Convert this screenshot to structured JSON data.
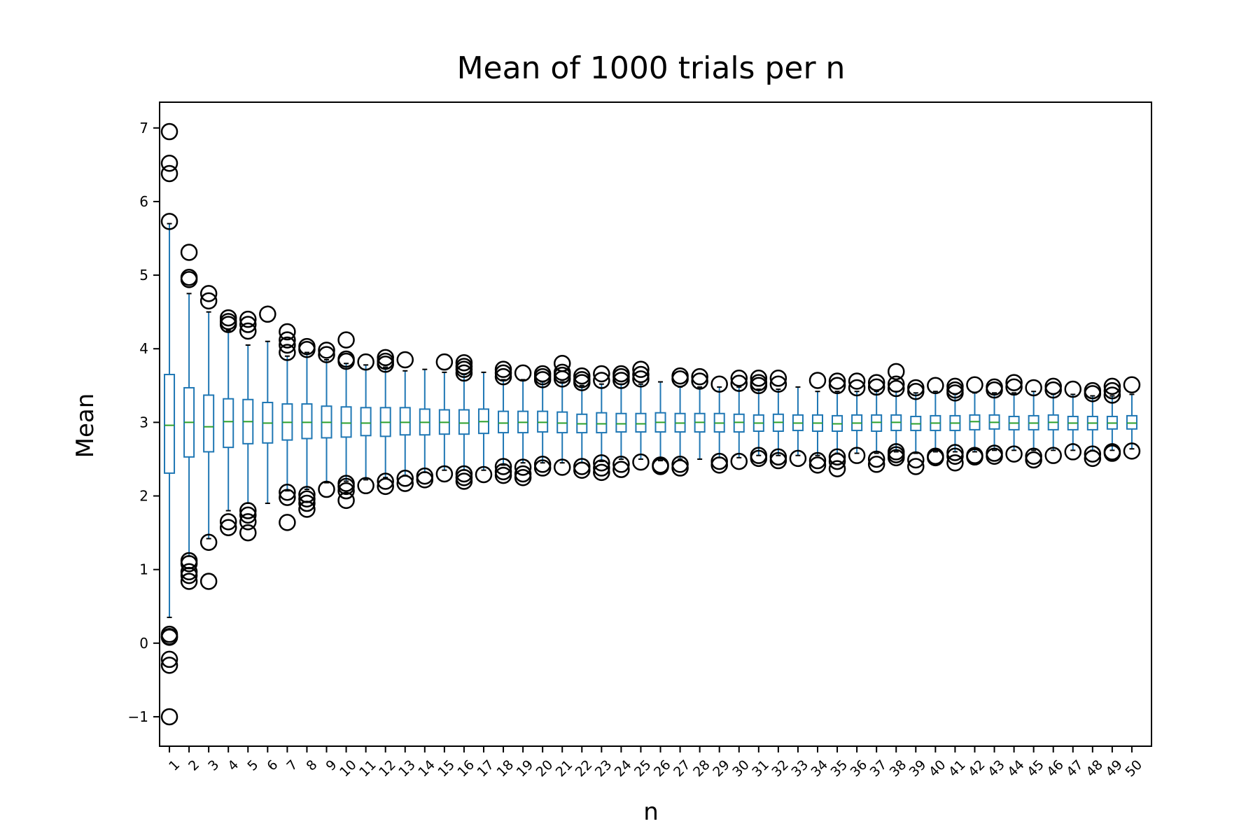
{
  "chart_data": {
    "type": "box",
    "title": "Mean of 1000 trials per n",
    "xlabel": "n",
    "ylabel": "Mean",
    "ylim": [
      -1.4,
      7.35
    ],
    "yticks": [
      -1,
      0,
      1,
      2,
      3,
      4,
      5,
      6,
      7
    ],
    "ytick_labels": [
      "−1",
      "0",
      "1",
      "2",
      "3",
      "4",
      "5",
      "6",
      "7"
    ],
    "grid": false,
    "categories": [
      "1",
      "2",
      "3",
      "4",
      "5",
      "6",
      "7",
      "8",
      "9",
      "10",
      "11",
      "12",
      "13",
      "14",
      "15",
      "16",
      "17",
      "18",
      "19",
      "20",
      "21",
      "22",
      "23",
      "24",
      "25",
      "26",
      "27",
      "28",
      "29",
      "30",
      "31",
      "32",
      "33",
      "34",
      "35",
      "36",
      "37",
      "38",
      "39",
      "40",
      "41",
      "42",
      "43",
      "44",
      "45",
      "46",
      "47",
      "48",
      "49",
      "50"
    ],
    "colors": {
      "box": "#1f77b4",
      "median": "#2ca02c",
      "whisker_cap": "#000000",
      "flier": "#000000"
    },
    "boxes": [
      {
        "n": 1,
        "median": 2.96,
        "q1": 2.31,
        "q3": 3.65,
        "whislo": 0.35,
        "whishi": 5.7,
        "fliers": [
          6.95,
          6.52,
          6.38,
          5.73,
          0.12,
          0.09,
          0.08,
          -0.22,
          -0.3,
          -1.0
        ]
      },
      {
        "n": 2,
        "median": 3.0,
        "q1": 2.53,
        "q3": 3.47,
        "whislo": 1.18,
        "whishi": 4.75,
        "fliers": [
          5.31,
          4.97,
          4.94,
          1.12,
          1.08,
          0.97,
          0.92,
          0.84
        ]
      },
      {
        "n": 3,
        "median": 2.94,
        "q1": 2.6,
        "q3": 3.37,
        "whislo": 1.42,
        "whishi": 4.5,
        "fliers": [
          4.75,
          4.65,
          1.37,
          0.84
        ]
      },
      {
        "n": 4,
        "median": 3.01,
        "q1": 2.66,
        "q3": 3.32,
        "whislo": 1.8,
        "whishi": 4.25,
        "fliers": [
          4.42,
          4.37,
          4.33,
          1.65,
          1.57
        ]
      },
      {
        "n": 5,
        "median": 3.01,
        "q1": 2.71,
        "q3": 3.31,
        "whislo": 1.9,
        "whishi": 4.05,
        "fliers": [
          4.4,
          4.33,
          4.24,
          1.8,
          1.74,
          1.65,
          1.5
        ]
      },
      {
        "n": 6,
        "median": 2.99,
        "q1": 2.72,
        "q3": 3.27,
        "whislo": 1.9,
        "whishi": 4.1,
        "fliers": [
          4.47
        ]
      },
      {
        "n": 7,
        "median": 3.0,
        "q1": 2.76,
        "q3": 3.25,
        "whislo": 2.07,
        "whishi": 3.9,
        "fliers": [
          4.23,
          4.12,
          4.05,
          3.95,
          2.05,
          1.98,
          1.64
        ]
      },
      {
        "n": 8,
        "median": 3.0,
        "q1": 2.78,
        "q3": 3.25,
        "whislo": 2.09,
        "whishi": 3.95,
        "fliers": [
          4.03,
          3.99,
          2.02,
          1.96,
          1.9,
          1.82
        ]
      },
      {
        "n": 9,
        "median": 3.0,
        "q1": 2.79,
        "q3": 3.22,
        "whislo": 2.18,
        "whishi": 3.85,
        "fliers": [
          3.98,
          3.92,
          2.09
        ]
      },
      {
        "n": 10,
        "median": 2.99,
        "q1": 2.8,
        "q3": 3.21,
        "whislo": 2.2,
        "whishi": 3.8,
        "fliers": [
          4.12,
          3.86,
          3.83,
          2.17,
          2.13,
          2.07,
          1.94
        ]
      },
      {
        "n": 11,
        "median": 2.99,
        "q1": 2.82,
        "q3": 3.2,
        "whislo": 2.22,
        "whishi": 3.78,
        "fliers": [
          3.82,
          2.14
        ]
      },
      {
        "n": 12,
        "median": 3.0,
        "q1": 2.81,
        "q3": 3.2,
        "whislo": 2.25,
        "whishi": 3.75,
        "fliers": [
          3.88,
          3.83,
          3.79,
          2.2,
          2.13
        ]
      },
      {
        "n": 13,
        "median": 3.0,
        "q1": 2.83,
        "q3": 3.2,
        "whislo": 2.28,
        "whishi": 3.7,
        "fliers": [
          3.85,
          2.24,
          2.17
        ]
      },
      {
        "n": 14,
        "median": 3.0,
        "q1": 2.83,
        "q3": 3.18,
        "whislo": 2.32,
        "whishi": 3.72,
        "fliers": [
          2.27,
          2.22
        ]
      },
      {
        "n": 15,
        "median": 3.0,
        "q1": 2.84,
        "q3": 3.17,
        "whislo": 2.35,
        "whishi": 3.68,
        "fliers": [
          3.82,
          2.3
        ]
      },
      {
        "n": 16,
        "median": 2.99,
        "q1": 2.84,
        "q3": 3.17,
        "whislo": 2.35,
        "whishi": 3.65,
        "fliers": [
          3.81,
          3.76,
          3.72,
          3.67,
          2.3,
          2.25,
          2.2
        ]
      },
      {
        "n": 17,
        "median": 3.01,
        "q1": 2.85,
        "q3": 3.18,
        "whislo": 2.35,
        "whishi": 3.68,
        "fliers": [
          2.29
        ]
      },
      {
        "n": 18,
        "median": 2.99,
        "q1": 2.86,
        "q3": 3.15,
        "whislo": 2.42,
        "whishi": 3.58,
        "fliers": [
          3.72,
          3.67,
          3.62,
          2.4,
          2.33,
          2.28
        ]
      },
      {
        "n": 19,
        "median": 3.0,
        "q1": 2.86,
        "q3": 3.15,
        "whislo": 2.45,
        "whishi": 3.58,
        "fliers": [
          3.67,
          2.39,
          2.3,
          2.25
        ]
      },
      {
        "n": 20,
        "median": 3.0,
        "q1": 2.87,
        "q3": 3.15,
        "whislo": 2.45,
        "whishi": 3.55,
        "fliers": [
          3.66,
          3.62,
          3.58,
          2.43,
          2.38
        ]
      },
      {
        "n": 21,
        "median": 2.99,
        "q1": 2.86,
        "q3": 3.14,
        "whislo": 2.45,
        "whishi": 3.55,
        "fliers": [
          3.8,
          3.68,
          3.64,
          3.59,
          2.39
        ]
      },
      {
        "n": 22,
        "median": 2.98,
        "q1": 2.86,
        "q3": 3.11,
        "whislo": 2.45,
        "whishi": 3.5,
        "fliers": [
          3.63,
          3.58,
          3.54,
          2.4,
          2.35
        ]
      },
      {
        "n": 23,
        "median": 2.98,
        "q1": 2.86,
        "q3": 3.13,
        "whislo": 2.47,
        "whishi": 3.52,
        "fliers": [
          3.66,
          3.57,
          2.45,
          2.38,
          2.32
        ]
      },
      {
        "n": 24,
        "median": 2.98,
        "q1": 2.87,
        "q3": 3.12,
        "whislo": 2.5,
        "whishi": 3.52,
        "fliers": [
          3.66,
          3.62,
          3.57,
          2.43,
          2.36
        ]
      },
      {
        "n": 25,
        "median": 2.98,
        "q1": 2.87,
        "q3": 3.12,
        "whislo": 2.5,
        "whishi": 3.52,
        "fliers": [
          3.72,
          3.65,
          3.59,
          2.46
        ]
      },
      {
        "n": 26,
        "median": 3.0,
        "q1": 2.87,
        "q3": 3.13,
        "whislo": 2.48,
        "whishi": 3.55,
        "fliers": [
          2.42,
          2.4
        ]
      },
      {
        "n": 27,
        "median": 2.99,
        "q1": 2.87,
        "q3": 3.12,
        "whislo": 2.5,
        "whishi": 3.48,
        "fliers": [
          3.63,
          3.59,
          2.43,
          2.38
        ]
      },
      {
        "n": 28,
        "median": 3.0,
        "q1": 2.87,
        "q3": 3.12,
        "whislo": 2.5,
        "whishi": 3.48,
        "fliers": [
          3.62,
          3.56
        ]
      },
      {
        "n": 29,
        "median": 2.99,
        "q1": 2.87,
        "q3": 3.12,
        "whislo": 2.52,
        "whishi": 3.48,
        "fliers": [
          3.52,
          2.47,
          2.42
        ]
      },
      {
        "n": 30,
        "median": 3.0,
        "q1": 2.87,
        "q3": 3.11,
        "whislo": 2.52,
        "whishi": 3.48,
        "fliers": [
          3.6,
          3.53,
          2.47
        ]
      },
      {
        "n": 31,
        "median": 2.99,
        "q1": 2.88,
        "q3": 3.1,
        "whislo": 2.55,
        "whishi": 3.45,
        "fliers": [
          3.6,
          3.54,
          3.5,
          2.55,
          2.51
        ]
      },
      {
        "n": 32,
        "median": 3.0,
        "q1": 2.88,
        "q3": 3.11,
        "whislo": 2.55,
        "whishi": 3.45,
        "fliers": [
          3.6,
          3.52,
          2.53,
          2.48
        ]
      },
      {
        "n": 33,
        "median": 2.99,
        "q1": 2.89,
        "q3": 3.1,
        "whislo": 2.55,
        "whishi": 3.48,
        "fliers": [
          2.51
        ]
      },
      {
        "n": 34,
        "median": 2.99,
        "q1": 2.88,
        "q3": 3.1,
        "whislo": 2.55,
        "whishi": 3.42,
        "fliers": [
          3.57,
          2.48,
          2.42
        ]
      },
      {
        "n": 35,
        "median": 2.98,
        "q1": 2.88,
        "q3": 3.09,
        "whislo": 2.58,
        "whishi": 3.42,
        "fliers": [
          3.56,
          3.5,
          2.53,
          2.47,
          2.37
        ]
      },
      {
        "n": 36,
        "median": 2.99,
        "q1": 2.89,
        "q3": 3.1,
        "whislo": 2.58,
        "whishi": 3.42,
        "fliers": [
          3.56,
          3.47,
          2.55
        ]
      },
      {
        "n": 37,
        "median": 3.0,
        "q1": 2.88,
        "q3": 3.1,
        "whislo": 2.58,
        "whishi": 3.42,
        "fliers": [
          3.54,
          3.48,
          2.5,
          2.43
        ]
      },
      {
        "n": 38,
        "median": 3.0,
        "q1": 2.89,
        "q3": 3.1,
        "whislo": 2.6,
        "whishi": 3.42,
        "fliers": [
          3.69,
          3.52,
          3.46,
          2.6,
          2.56,
          2.52
        ]
      },
      {
        "n": 39,
        "median": 2.98,
        "q1": 2.89,
        "q3": 3.08,
        "whislo": 2.58,
        "whishi": 3.4,
        "fliers": [
          3.47,
          3.42,
          2.49,
          2.4
        ]
      },
      {
        "n": 40,
        "median": 2.99,
        "q1": 2.89,
        "q3": 3.09,
        "whislo": 2.6,
        "whishi": 3.42,
        "fliers": [
          3.5,
          2.54,
          2.52
        ]
      },
      {
        "n": 41,
        "median": 2.99,
        "q1": 2.89,
        "q3": 3.09,
        "whislo": 2.6,
        "whishi": 3.38,
        "fliers": [
          3.49,
          3.44,
          3.4,
          2.59,
          2.54,
          2.45
        ]
      },
      {
        "n": 42,
        "median": 3.01,
        "q1": 2.9,
        "q3": 3.1,
        "whislo": 2.6,
        "whishi": 3.4,
        "fliers": [
          3.51,
          2.55,
          2.53
        ]
      },
      {
        "n": 43,
        "median": 3.0,
        "q1": 2.91,
        "q3": 3.1,
        "whislo": 2.62,
        "whishi": 3.4,
        "fliers": [
          3.48,
          3.44,
          2.58,
          2.54
        ]
      },
      {
        "n": 44,
        "median": 2.99,
        "q1": 2.9,
        "q3": 3.08,
        "whislo": 2.62,
        "whishi": 3.4,
        "fliers": [
          3.54,
          3.48,
          2.57
        ]
      },
      {
        "n": 45,
        "median": 2.99,
        "q1": 2.9,
        "q3": 3.09,
        "whislo": 2.62,
        "whishi": 3.42,
        "fliers": [
          3.47,
          2.54,
          2.49
        ]
      },
      {
        "n": 46,
        "median": 3.0,
        "q1": 2.9,
        "q3": 3.1,
        "whislo": 2.62,
        "whishi": 3.38,
        "fliers": [
          3.49,
          3.44,
          2.55
        ]
      },
      {
        "n": 47,
        "median": 2.99,
        "q1": 2.9,
        "q3": 3.08,
        "whislo": 2.62,
        "whishi": 3.38,
        "fliers": [
          3.45,
          2.6
        ]
      },
      {
        "n": 48,
        "median": 2.99,
        "q1": 2.9,
        "q3": 3.08,
        "whislo": 2.62,
        "whishi": 3.36,
        "fliers": [
          3.43,
          3.39,
          2.57,
          2.51
        ]
      },
      {
        "n": 49,
        "median": 2.99,
        "q1": 2.91,
        "q3": 3.08,
        "whislo": 2.62,
        "whishi": 3.36,
        "fliers": [
          3.49,
          3.43,
          3.37,
          2.6,
          2.58
        ]
      },
      {
        "n": 50,
        "median": 2.99,
        "q1": 2.91,
        "q3": 3.09,
        "whislo": 2.64,
        "whishi": 3.38,
        "fliers": [
          3.51,
          2.61
        ]
      }
    ]
  }
}
